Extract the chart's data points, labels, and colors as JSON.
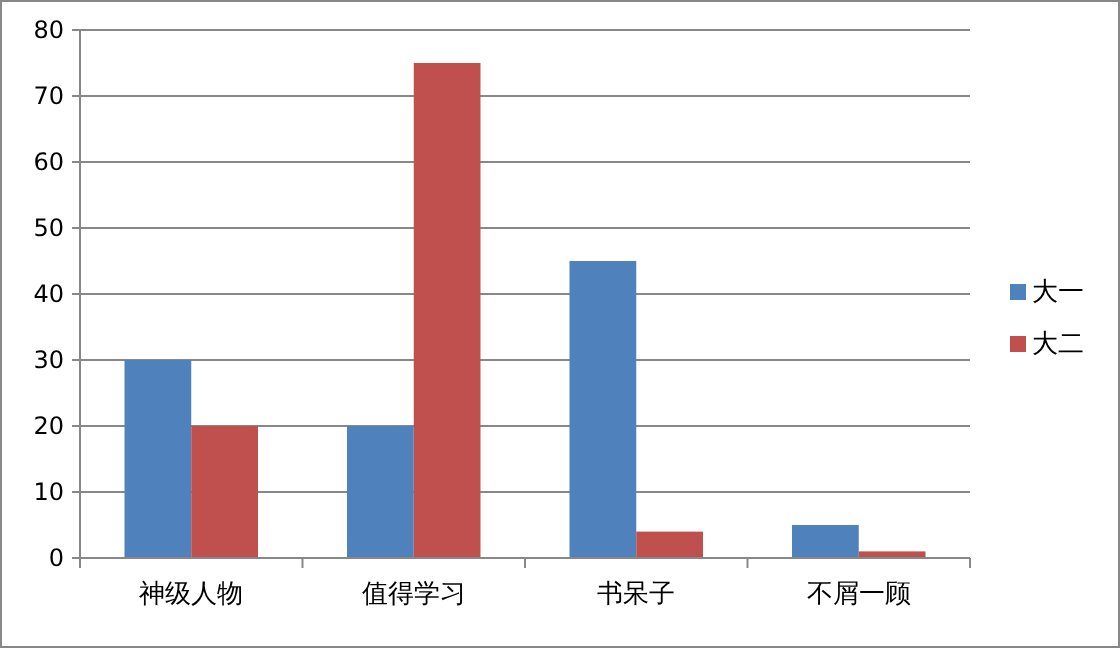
{
  "chart_data": {
    "type": "bar",
    "categories": [
      "神级人物",
      "值得学习",
      "书呆子",
      "不屑一顾"
    ],
    "series": [
      {
        "name": "大一",
        "color": "#4f81bd",
        "values": [
          30,
          20,
          45,
          5
        ]
      },
      {
        "name": "大二",
        "color": "#c0504d",
        "values": [
          20,
          75,
          4,
          1
        ]
      }
    ],
    "ylim": [
      0,
      80
    ],
    "yticks": [
      0,
      10,
      20,
      30,
      40,
      50,
      60,
      70,
      80
    ],
    "grid": "y",
    "legend": "right"
  }
}
